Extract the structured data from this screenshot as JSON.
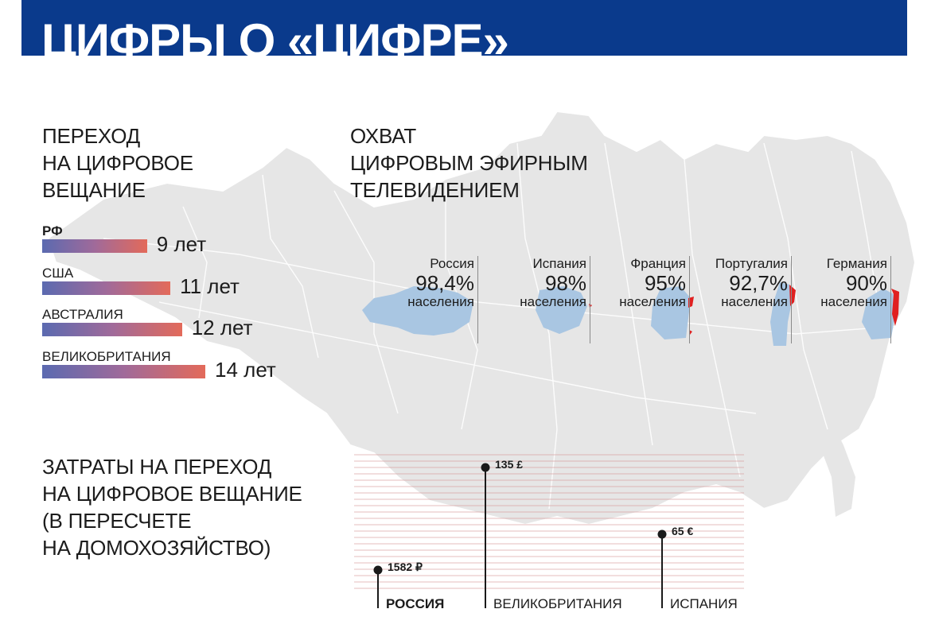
{
  "header": {
    "title": "ЦИФРЫ О «ЦИФРЕ»"
  },
  "transition": {
    "title_lines": [
      "ПЕРЕХОД",
      "НА ЦИФРОВОЕ",
      "ВЕЩАНИЕ"
    ],
    "rows": [
      {
        "country": "РФ",
        "years_label": "9 лет",
        "years": 9,
        "bold": true
      },
      {
        "country": "США",
        "years_label": "11 лет",
        "years": 11,
        "bold": false
      },
      {
        "country": "АВСТРАЛИЯ",
        "years_label": "12 лет",
        "years": 12,
        "bold": false
      },
      {
        "country": "ВЕЛИКОБРИТАНИЯ",
        "years_label": "14 лет",
        "years": 14,
        "bold": false
      }
    ]
  },
  "coverage": {
    "title_lines": [
      "ОХВАТ",
      "ЦИФРОВЫМ ЭФИРНЫМ",
      "ТЕЛЕВИДЕНИЕМ"
    ],
    "items": [
      {
        "country": "Россия",
        "value_label": "98,4%",
        "value": 98.4,
        "unit": "населения"
      },
      {
        "country": "Испания",
        "value_label": "98%",
        "value": 98,
        "unit": "населения"
      },
      {
        "country": "Франция",
        "value_label": "95%",
        "value": 95,
        "unit": "населения"
      },
      {
        "country": "Португалия",
        "value_label": "92,7%",
        "value": 92.7,
        "unit": "населения"
      },
      {
        "country": "Германия",
        "value_label": "90%",
        "value": 90,
        "unit": "населения"
      }
    ]
  },
  "costs": {
    "title_lines": [
      "ЗАТРАТЫ НА ПЕРЕХОД",
      "НА ЦИФРОВОЕ ВЕЩАНИЕ",
      "(В ПЕРЕСЧЕТЕ",
      "НА ДОМОХОЗЯЙСТВО)"
    ]
  },
  "chart_data": [
    {
      "type": "bar",
      "title": "ПЕРЕХОД НА ЦИФРОВОЕ ВЕЩАНИЕ",
      "categories": [
        "РФ",
        "США",
        "АВСТРАЛИЯ",
        "ВЕЛИКОБРИТАНИЯ"
      ],
      "values": [
        9,
        11,
        12,
        14
      ],
      "unit": "лет"
    },
    {
      "type": "bar",
      "title": "ОХВАТ ЦИФРОВЫМ ЭФИРНЫМ ТЕЛЕВИДЕНИЕМ",
      "categories": [
        "Россия",
        "Испания",
        "Франция",
        "Португалия",
        "Германия"
      ],
      "values": [
        98.4,
        98,
        95,
        92.7,
        90
      ],
      "unit": "%"
    },
    {
      "type": "bar",
      "title": "ЗАТРАТЫ НА ПЕРЕХОД НА ЦИФРОВОЕ ВЕЩАНИЕ (В ПЕРЕСЧЕТЕ НА ДОМОХОЗЯЙСТВО)",
      "categories": [
        "РОССИЯ",
        "ВЕЛИКОБРИТАНИЯ",
        "ИСПАНИЯ"
      ],
      "value_labels": [
        "1582 ₽",
        "135 £",
        "65 €"
      ],
      "values": [
        1582,
        135,
        65
      ],
      "currencies": [
        "₽",
        "£",
        "€"
      ]
    }
  ],
  "colors": {
    "header": "#0a3a8c",
    "map": "#e6e6e6",
    "coverage": "#a9c6e2",
    "uncovered": "#e02020",
    "bar_start": "#5b6ab0",
    "bar_end": "#e36a5a",
    "stripe": "#d9a0a0"
  }
}
